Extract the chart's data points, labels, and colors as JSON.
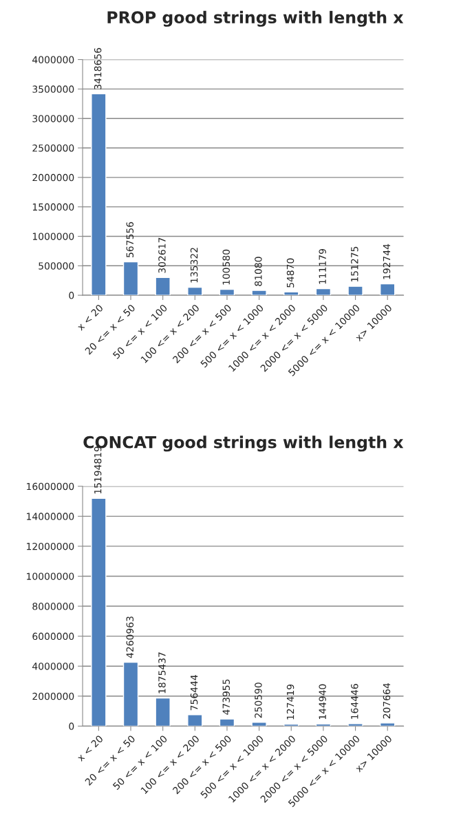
{
  "chart_data": [
    {
      "type": "bar",
      "title": "PROP good strings with length x",
      "categories": [
        "x < 20",
        "20 <= x < 50",
        "50 <= x < 100",
        "100 <= x < 200",
        "200 <= x < 500",
        "500 <= x < 1000",
        "1000 <= x < 2000",
        "2000 <= x < 5000",
        "5000 <= x < 10000",
        "x> 10000"
      ],
      "series": [
        {
          "color": "#4f81bd",
          "values": [
            3418656,
            567556,
            302617,
            135322,
            100580,
            81080,
            54870,
            111179,
            151275,
            192744
          ]
        }
      ],
      "ylim": [
        0,
        4000000
      ],
      "yticks": [
        0,
        500000,
        1000000,
        1500000,
        2000000,
        2500000,
        3000000,
        3500000,
        4000000
      ],
      "grid": "y",
      "data_labels": true,
      "legend": false
    },
    {
      "type": "bar",
      "title": "CONCAT good strings with length x",
      "categories": [
        "x < 20",
        "20 <= x < 50",
        "50 <= x < 100",
        "100 <= x < 200",
        "200 <= x < 500",
        "500 <= x < 1000",
        "1000 <= x < 2000",
        "2000 <= x < 5000",
        "5000 <= x < 10000",
        "x> 10000"
      ],
      "series": [
        {
          "color": "#4f81bd",
          "values": [
            15194819,
            4260963,
            1875437,
            756444,
            473955,
            250590,
            127419,
            144940,
            164446,
            207664
          ]
        }
      ],
      "ylim": [
        0,
        16000000
      ],
      "yticks": [
        0,
        2000000,
        4000000,
        6000000,
        8000000,
        10000000,
        12000000,
        14000000,
        16000000
      ],
      "grid": "y",
      "data_labels": true,
      "legend": false
    }
  ]
}
